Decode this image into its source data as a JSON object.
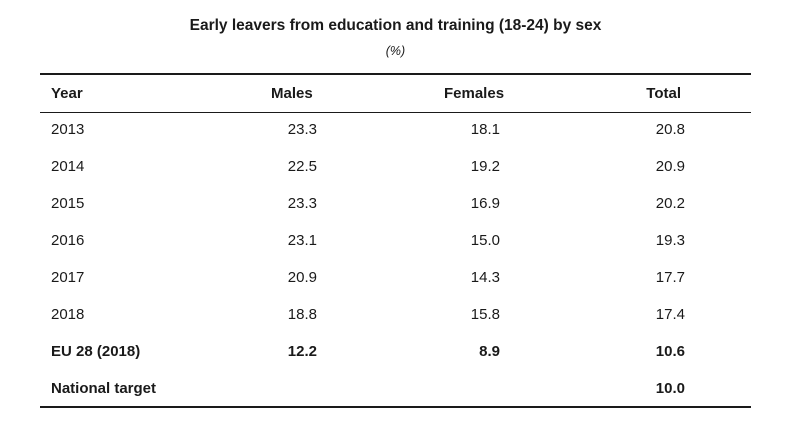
{
  "table": {
    "title": "Early leavers from education and training (18-24) by sex",
    "subtitle": "(%)",
    "headers": {
      "year": "Year",
      "males": "Males",
      "females": "Females",
      "total": "Total"
    },
    "rows": [
      {
        "year": "2013",
        "males": "23.3",
        "females": "18.1",
        "total": "20.8"
      },
      {
        "year": "2014",
        "males": "22.5",
        "females": "19.2",
        "total": "20.9"
      },
      {
        "year": "2015",
        "males": "23.3",
        "females": "16.9",
        "total": "20.2"
      },
      {
        "year": "2016",
        "males": "23.1",
        "females": "15.0",
        "total": "19.3"
      },
      {
        "year": "2017",
        "males": "20.9",
        "females": "14.3",
        "total": "17.7"
      },
      {
        "year": "2018",
        "males": "18.8",
        "females": "15.8",
        "total": "17.4"
      }
    ],
    "eu_row": {
      "year": "EU 28 (2018)",
      "males": "12.2",
      "females": "8.9",
      "total": "10.6"
    },
    "target_row": {
      "year": "National target",
      "males": "",
      "females": "",
      "total": "10.0"
    }
  }
}
